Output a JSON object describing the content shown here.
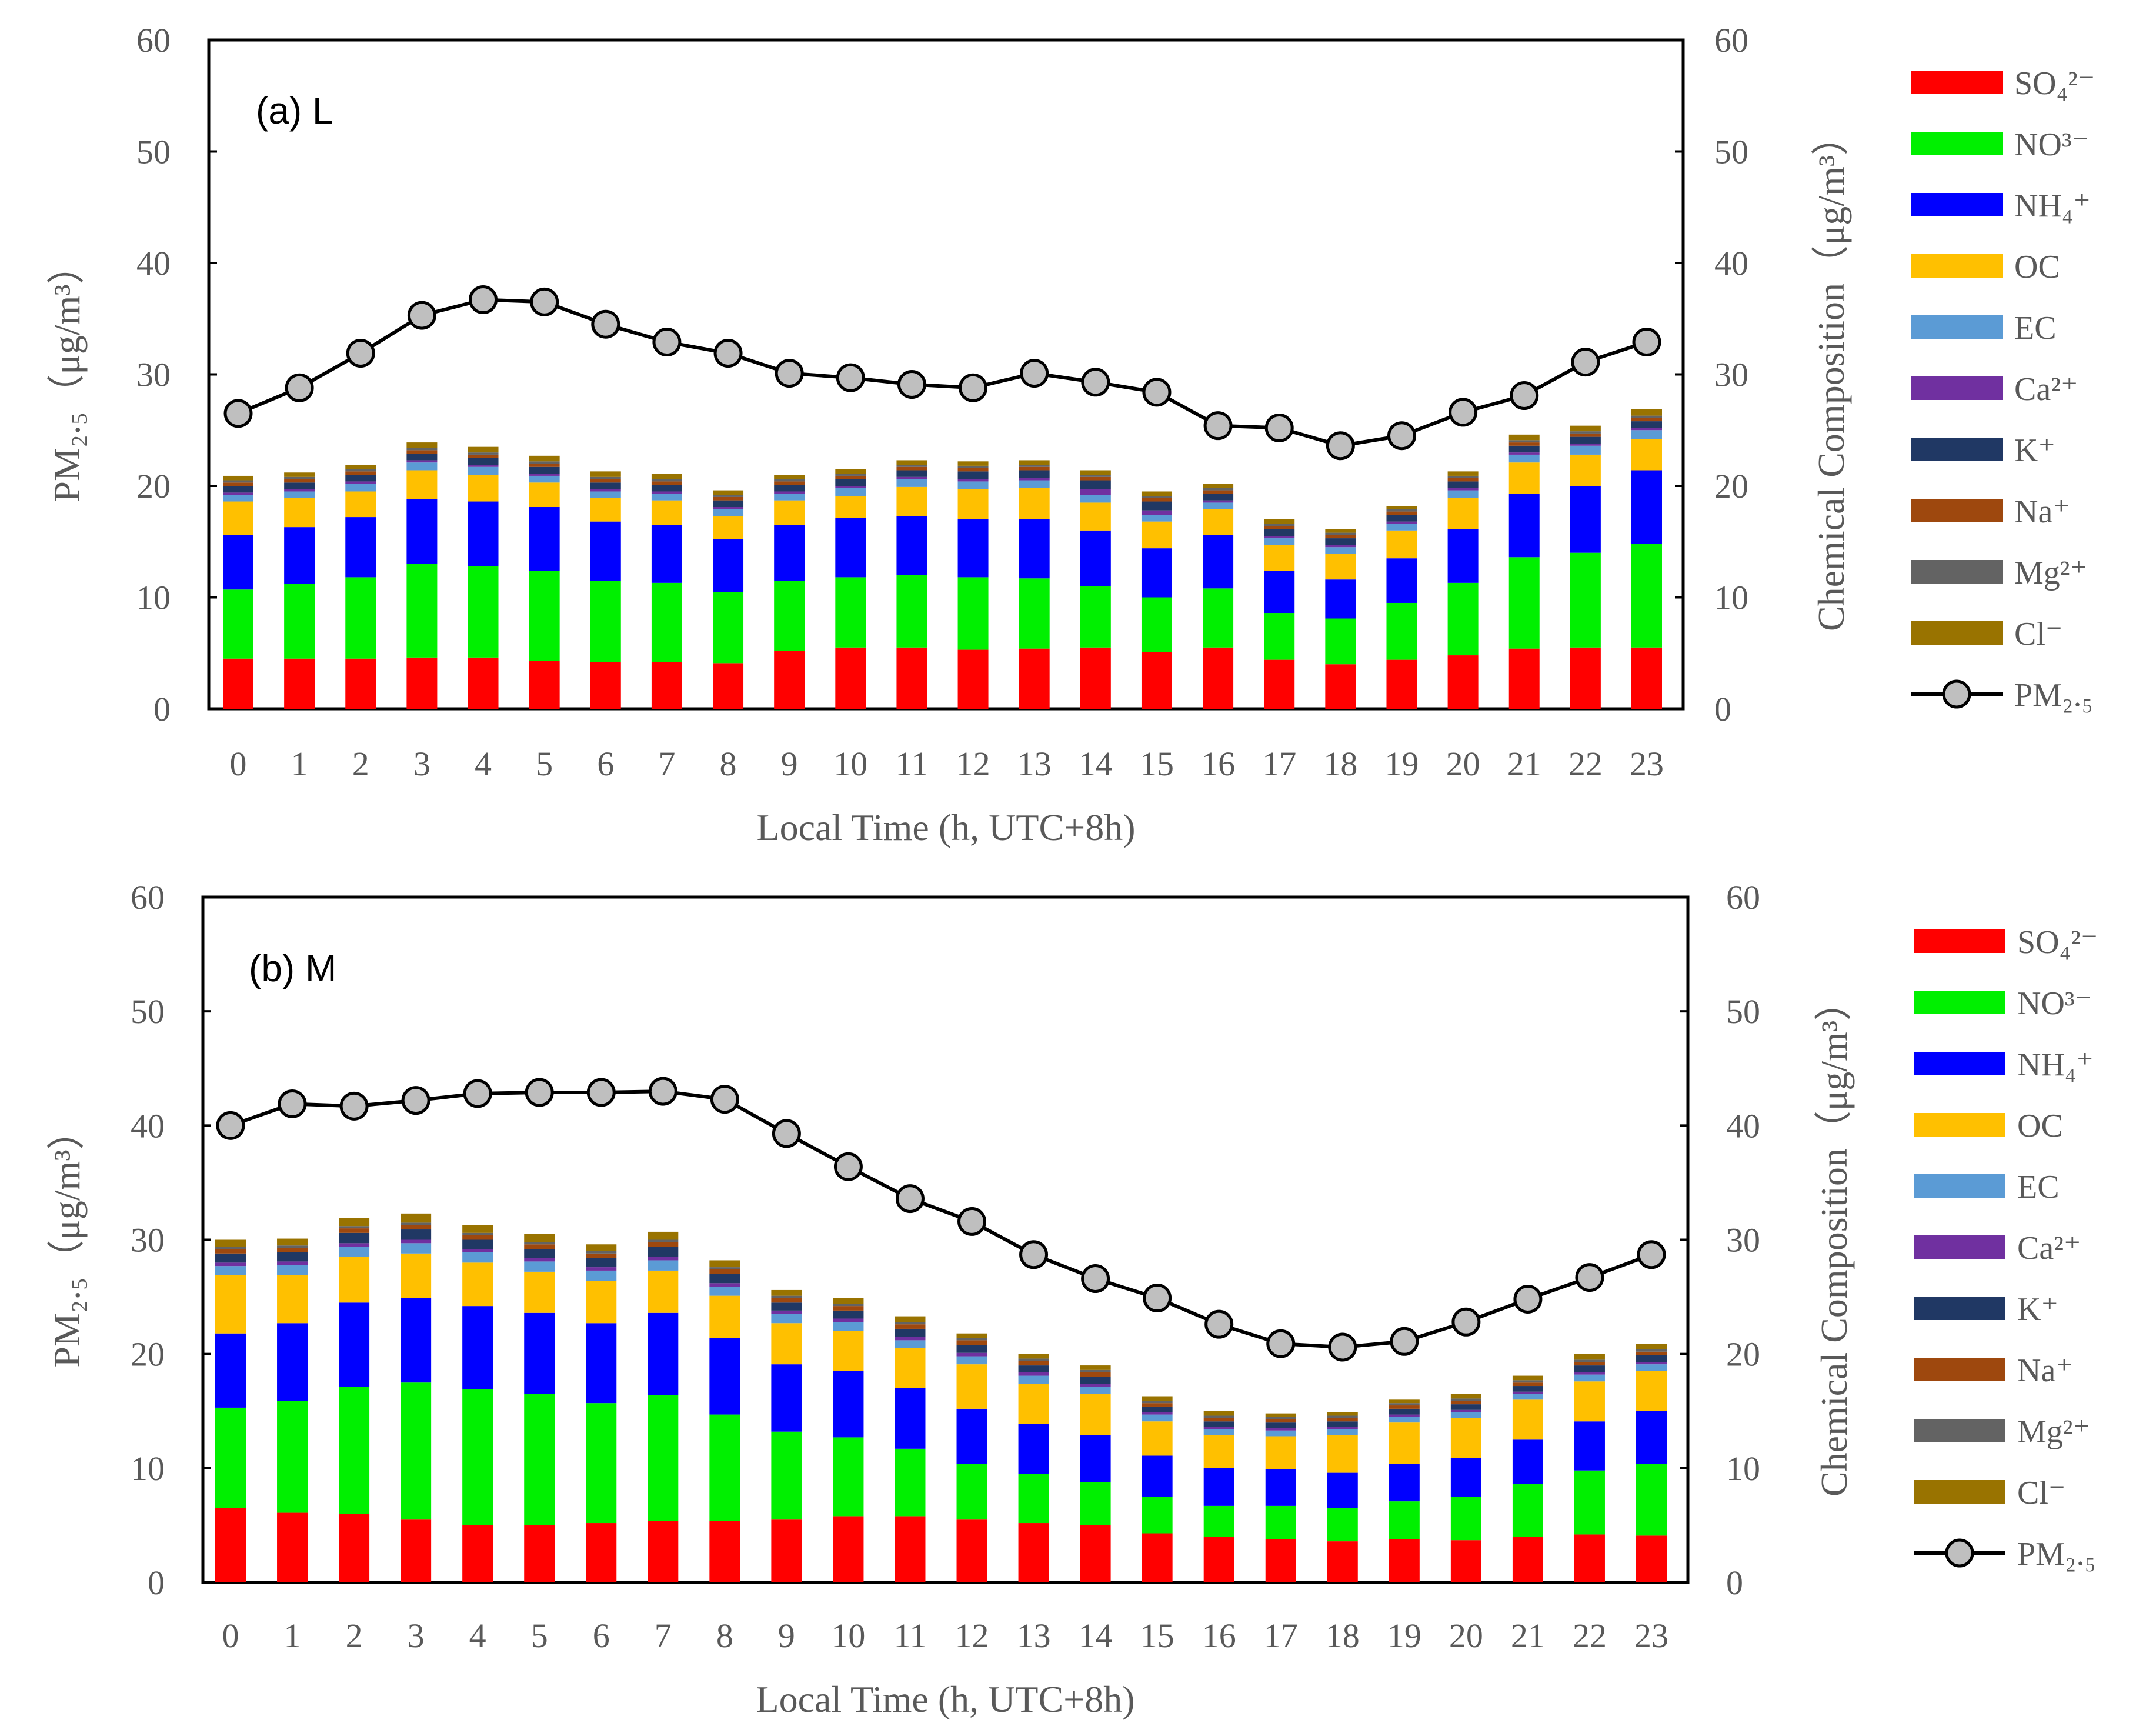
{
  "figure": {
    "legend": [
      {
        "key": "so4",
        "label": "SO₄²⁻",
        "color": "#FF0000"
      },
      {
        "key": "no3",
        "label": "NO³⁻",
        "color": "#00F000"
      },
      {
        "key": "nh4",
        "label": "NH₄⁺",
        "color": "#0000FF"
      },
      {
        "key": "oc",
        "label": "OC",
        "color": "#FFC000"
      },
      {
        "key": "ec",
        "label": "EC",
        "color": "#5B9BD5"
      },
      {
        "key": "ca",
        "label": "Ca²⁺",
        "color": "#7030A0"
      },
      {
        "key": "k",
        "label": "K⁺",
        "color": "#203864"
      },
      {
        "key": "na",
        "label": "Na⁺",
        "color": "#9E480E"
      },
      {
        "key": "mg",
        "label": "Mg²⁺",
        "color": "#636363"
      },
      {
        "key": "cl",
        "label": "Cl⁻",
        "color": "#997300"
      }
    ],
    "line_legend_label": "PM₂.₅",
    "line_color": "#000000",
    "marker_fill": "#BFBFBF"
  },
  "chart_data": [
    {
      "type": "bar",
      "panel_label": "(a) L",
      "xlabel": "Local Time (h, UTC+8h)",
      "ylabel": "PM₂.₅（μg/m³）",
      "y2label": "Chemical Composition（μg/m³）",
      "ylim": [
        0,
        60
      ],
      "y2lim": [
        0,
        60
      ],
      "yticks": [
        0,
        10,
        20,
        30,
        40,
        50,
        60
      ],
      "categories": [
        "0",
        "1",
        "2",
        "3",
        "4",
        "5",
        "6",
        "7",
        "8",
        "9",
        "10",
        "11",
        "12",
        "13",
        "14",
        "15",
        "16",
        "17",
        "18",
        "19",
        "20",
        "21",
        "22",
        "23"
      ],
      "stacked": true,
      "series": [
        {
          "key": "so4",
          "values": [
            4.5,
            4.5,
            4.5,
            4.6,
            4.6,
            4.3,
            4.2,
            4.2,
            4.1,
            5.2,
            5.5,
            5.5,
            5.3,
            5.4,
            5.5,
            5.1,
            5.5,
            4.4,
            4.0,
            4.4,
            4.8,
            5.4,
            5.5,
            5.5
          ]
        },
        {
          "key": "no3",
          "values": [
            6.2,
            6.7,
            7.3,
            8.4,
            8.2,
            8.1,
            7.3,
            7.1,
            6.4,
            6.3,
            6.3,
            6.5,
            6.5,
            6.3,
            5.5,
            4.9,
            5.3,
            4.2,
            4.1,
            5.1,
            6.5,
            8.2,
            8.5,
            9.3
          ]
        },
        {
          "key": "nh4",
          "values": [
            4.9,
            5.1,
            5.4,
            5.8,
            5.8,
            5.7,
            5.3,
            5.2,
            4.7,
            5.0,
            5.3,
            5.3,
            5.2,
            5.3,
            5.0,
            4.4,
            4.8,
            3.8,
            3.5,
            4.0,
            4.8,
            5.7,
            6.0,
            6.6
          ]
        },
        {
          "key": "oc",
          "values": [
            3.0,
            2.6,
            2.3,
            2.6,
            2.4,
            2.2,
            2.1,
            2.2,
            2.1,
            2.2,
            2.0,
            2.6,
            2.7,
            2.8,
            2.5,
            2.4,
            2.3,
            2.3,
            2.3,
            2.5,
            2.8,
            2.8,
            2.8,
            2.8
          ]
        },
        {
          "key": "ec",
          "values": [
            0.6,
            0.6,
            0.7,
            0.7,
            0.7,
            0.6,
            0.6,
            0.6,
            0.6,
            0.6,
            0.7,
            0.7,
            0.7,
            0.7,
            0.7,
            0.6,
            0.6,
            0.6,
            0.6,
            0.6,
            0.7,
            0.7,
            0.8,
            0.8
          ]
        },
        {
          "key": "ca",
          "values": [
            0.2,
            0.2,
            0.2,
            0.2,
            0.2,
            0.2,
            0.2,
            0.2,
            0.2,
            0.2,
            0.2,
            0.2,
            0.2,
            0.2,
            0.5,
            0.4,
            0.2,
            0.2,
            0.2,
            0.2,
            0.2,
            0.2,
            0.2,
            0.2
          ]
        },
        {
          "key": "k",
          "values": [
            0.6,
            0.6,
            0.6,
            0.6,
            0.6,
            0.6,
            0.6,
            0.6,
            0.6,
            0.6,
            0.6,
            0.6,
            0.7,
            0.7,
            0.8,
            0.8,
            0.6,
            0.6,
            0.6,
            0.6,
            0.6,
            0.6,
            0.6,
            0.6
          ]
        },
        {
          "key": "na",
          "values": [
            0.3,
            0.3,
            0.3,
            0.3,
            0.3,
            0.3,
            0.3,
            0.3,
            0.3,
            0.3,
            0.3,
            0.3,
            0.3,
            0.3,
            0.3,
            0.3,
            0.3,
            0.3,
            0.3,
            0.3,
            0.3,
            0.3,
            0.3,
            0.3
          ]
        },
        {
          "key": "mg",
          "values": [
            0.2,
            0.2,
            0.2,
            0.2,
            0.2,
            0.2,
            0.2,
            0.2,
            0.2,
            0.2,
            0.2,
            0.2,
            0.2,
            0.2,
            0.2,
            0.2,
            0.2,
            0.2,
            0.2,
            0.2,
            0.2,
            0.2,
            0.2,
            0.2
          ]
        },
        {
          "key": "cl",
          "values": [
            0.4,
            0.4,
            0.4,
            0.5,
            0.5,
            0.5,
            0.5,
            0.5,
            0.4,
            0.4,
            0.4,
            0.4,
            0.4,
            0.4,
            0.4,
            0.4,
            0.4,
            0.4,
            0.3,
            0.3,
            0.4,
            0.5,
            0.5,
            0.6
          ]
        }
      ],
      "line": {
        "name": "PM₂.₅",
        "values": [
          26.5,
          28.8,
          31.9,
          35.3,
          36.7,
          36.5,
          34.5,
          32.9,
          31.9,
          30.1,
          29.7,
          29.1,
          28.8,
          30.1,
          29.3,
          28.4,
          25.4,
          25.2,
          23.6,
          24.5,
          26.6,
          28.1,
          31.1,
          32.9
        ]
      }
    },
    {
      "type": "bar",
      "panel_label": "(b) M",
      "xlabel": "Local Time (h, UTC+8h)",
      "ylabel": "PM₂.₅（μg/m³）",
      "y2label": "Chemical Composition（μg/m³）",
      "ylim": [
        0,
        60
      ],
      "y2lim": [
        0,
        60
      ],
      "yticks": [
        0,
        10,
        20,
        30,
        40,
        50,
        60
      ],
      "categories": [
        "0",
        "1",
        "2",
        "3",
        "4",
        "5",
        "6",
        "7",
        "8",
        "9",
        "10",
        "11",
        "12",
        "13",
        "14",
        "15",
        "16",
        "17",
        "18",
        "19",
        "20",
        "21",
        "22",
        "23"
      ],
      "stacked": true,
      "series": [
        {
          "key": "so4",
          "values": [
            6.5,
            6.1,
            6.0,
            5.5,
            5.0,
            5.0,
            5.2,
            5.4,
            5.4,
            5.5,
            5.8,
            5.8,
            5.5,
            5.2,
            5.0,
            4.3,
            4.0,
            3.8,
            3.6,
            3.8,
            3.7,
            4.0,
            4.2,
            4.1
          ]
        },
        {
          "key": "no3",
          "values": [
            8.8,
            9.8,
            11.1,
            12.0,
            11.9,
            11.5,
            10.5,
            11.0,
            9.3,
            7.7,
            6.9,
            5.9,
            4.9,
            4.3,
            3.8,
            3.2,
            2.7,
            2.9,
            2.9,
            3.3,
            3.8,
            4.6,
            5.6,
            6.3
          ]
        },
        {
          "key": "nh4",
          "values": [
            6.5,
            6.8,
            7.4,
            7.4,
            7.3,
            7.1,
            7.0,
            7.2,
            6.7,
            5.9,
            5.8,
            5.3,
            4.8,
            4.4,
            4.1,
            3.6,
            3.3,
            3.2,
            3.1,
            3.3,
            3.4,
            3.9,
            4.3,
            4.6
          ]
        },
        {
          "key": "oc",
          "values": [
            5.1,
            4.2,
            4.0,
            3.9,
            3.8,
            3.6,
            3.7,
            3.7,
            3.7,
            3.6,
            3.5,
            3.5,
            3.9,
            3.5,
            3.6,
            3.0,
            2.9,
            2.9,
            3.3,
            3.6,
            3.5,
            3.5,
            3.5,
            3.5
          ]
        },
        {
          "key": "ec",
          "values": [
            0.8,
            0.9,
            0.9,
            0.9,
            0.9,
            0.9,
            0.9,
            0.9,
            0.8,
            0.8,
            0.8,
            0.7,
            0.7,
            0.7,
            0.6,
            0.6,
            0.5,
            0.5,
            0.5,
            0.5,
            0.5,
            0.5,
            0.6,
            0.6
          ]
        },
        {
          "key": "ca",
          "values": [
            0.3,
            0.3,
            0.3,
            0.3,
            0.3,
            0.3,
            0.3,
            0.3,
            0.3,
            0.3,
            0.3,
            0.3,
            0.3,
            0.3,
            0.3,
            0.2,
            0.2,
            0.2,
            0.2,
            0.2,
            0.2,
            0.2,
            0.2,
            0.2
          ]
        },
        {
          "key": "k",
          "values": [
            0.8,
            0.8,
            0.9,
            0.9,
            0.8,
            0.8,
            0.8,
            0.9,
            0.8,
            0.7,
            0.7,
            0.7,
            0.7,
            0.6,
            0.6,
            0.5,
            0.5,
            0.5,
            0.5,
            0.5,
            0.5,
            0.5,
            0.6,
            0.6
          ]
        },
        {
          "key": "na",
          "values": [
            0.4,
            0.4,
            0.4,
            0.4,
            0.4,
            0.4,
            0.4,
            0.4,
            0.4,
            0.4,
            0.4,
            0.4,
            0.4,
            0.4,
            0.4,
            0.3,
            0.3,
            0.3,
            0.3,
            0.3,
            0.3,
            0.3,
            0.3,
            0.3
          ]
        },
        {
          "key": "mg",
          "values": [
            0.2,
            0.2,
            0.2,
            0.2,
            0.2,
            0.2,
            0.2,
            0.2,
            0.2,
            0.2,
            0.2,
            0.2,
            0.2,
            0.2,
            0.2,
            0.2,
            0.2,
            0.2,
            0.2,
            0.2,
            0.2,
            0.2,
            0.2,
            0.2
          ]
        },
        {
          "key": "cl",
          "values": [
            0.6,
            0.6,
            0.7,
            0.8,
            0.7,
            0.7,
            0.6,
            0.7,
            0.6,
            0.5,
            0.5,
            0.5,
            0.4,
            0.4,
            0.4,
            0.4,
            0.4,
            0.3,
            0.3,
            0.3,
            0.4,
            0.4,
            0.5,
            0.5
          ]
        }
      ],
      "line": {
        "name": "PM₂.₅",
        "values": [
          40.0,
          41.9,
          41.7,
          42.2,
          42.8,
          42.9,
          42.9,
          43.0,
          42.3,
          39.3,
          36.4,
          33.6,
          31.6,
          28.7,
          26.6,
          24.9,
          22.6,
          20.9,
          20.6,
          21.1,
          22.8,
          24.8,
          26.7,
          28.7
        ]
      }
    }
  ]
}
